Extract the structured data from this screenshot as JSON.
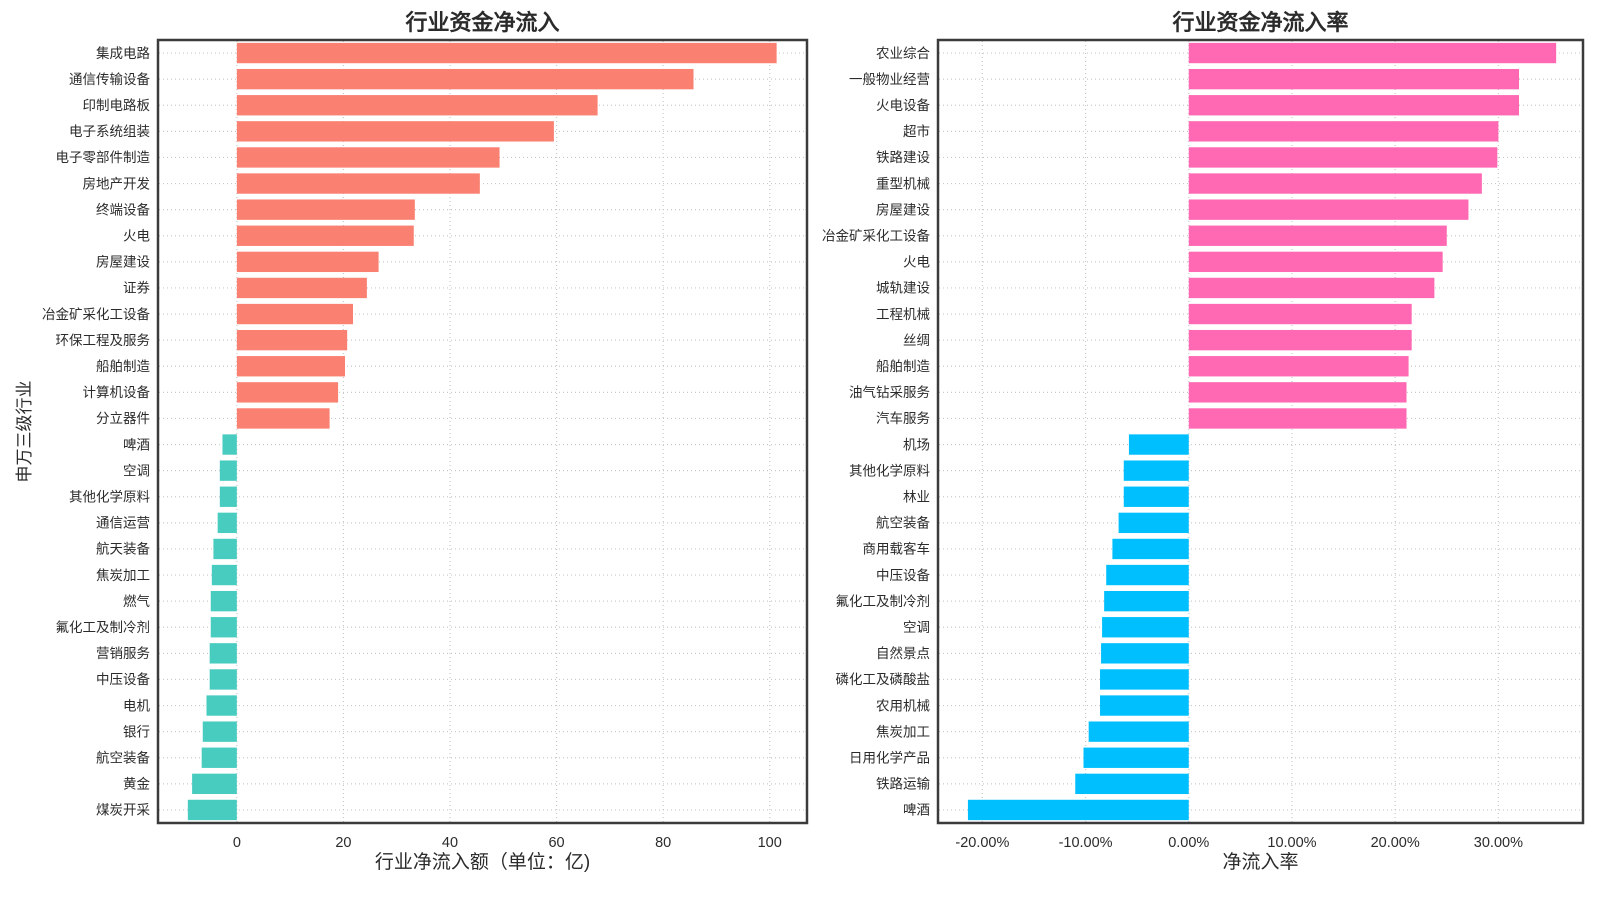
{
  "page": {
    "background": "#ffffff"
  },
  "chart_data": [
    {
      "type": "bar",
      "orientation": "horizontal",
      "title": "行业资金净流入",
      "xlabel": "行业净流入额（单位：亿)",
      "ylabel": "申万三级行业",
      "legend": "none",
      "grid": true,
      "xlim": [
        -14.8,
        107.0
      ],
      "xticks": [
        {
          "value": 0,
          "label": "0"
        },
        {
          "value": 20,
          "label": "20"
        },
        {
          "value": 40,
          "label": "40"
        },
        {
          "value": 60,
          "label": "60"
        },
        {
          "value": 80,
          "label": "80"
        },
        {
          "value": 100,
          "label": "100"
        }
      ],
      "colors": {
        "positive": "#fa8072",
        "negative": "#48ccc0"
      },
      "bars": [
        {
          "label": "集成电路",
          "value": 101.3
        },
        {
          "label": "通信传输设备",
          "value": 85.7
        },
        {
          "label": "印制电路板",
          "value": 67.7
        },
        {
          "label": "电子系统组装",
          "value": 59.5
        },
        {
          "label": "电子零部件制造",
          "value": 49.3
        },
        {
          "label": "房地产开发",
          "value": 45.6
        },
        {
          "label": "终端设备",
          "value": 33.4
        },
        {
          "label": "火电",
          "value": 33.2
        },
        {
          "label": "房屋建设",
          "value": 26.6
        },
        {
          "label": "证券",
          "value": 24.4
        },
        {
          "label": "冶金矿采化工设备",
          "value": 21.8
        },
        {
          "label": "环保工程及服务",
          "value": 20.7
        },
        {
          "label": "船舶制造",
          "value": 20.3
        },
        {
          "label": "计算机设备",
          "value": 19.0
        },
        {
          "label": "分立器件",
          "value": 17.4
        },
        {
          "label": "啤酒",
          "value": -2.7
        },
        {
          "label": "空调",
          "value": -3.2
        },
        {
          "label": "其他化学原料",
          "value": -3.2
        },
        {
          "label": "通信运营",
          "value": -3.6
        },
        {
          "label": "航天装备",
          "value": -4.4
        },
        {
          "label": "焦炭加工",
          "value": -4.7
        },
        {
          "label": "燃气",
          "value": -4.9
        },
        {
          "label": "氟化工及制冷剂",
          "value": -4.9
        },
        {
          "label": "营销服务",
          "value": -5.1
        },
        {
          "label": "中压设备",
          "value": -5.1
        },
        {
          "label": "电机",
          "value": -5.7
        },
        {
          "label": "银行",
          "value": -6.4
        },
        {
          "label": "航空装备",
          "value": -6.6
        },
        {
          "label": "黄金",
          "value": -8.4
        },
        {
          "label": "煤炭开采",
          "value": -9.2
        }
      ]
    },
    {
      "type": "bar",
      "orientation": "horizontal",
      "title": "行业资金净流入率",
      "xlabel": "净流入率",
      "ylabel": "",
      "legend": "none",
      "grid": true,
      "xlim": [
        -24.3,
        38.2
      ],
      "xticks": [
        {
          "value": -20,
          "label": "-20.00%"
        },
        {
          "value": -10,
          "label": "-10.00%"
        },
        {
          "value": 0,
          "label": "0.00%"
        },
        {
          "value": 10,
          "label": "10.00%"
        },
        {
          "value": 20,
          "label": "20.00%"
        },
        {
          "value": 30,
          "label": "30.00%"
        }
      ],
      "colors": {
        "positive": "#ff69b4",
        "negative": "#00bfff"
      },
      "bars": [
        {
          "label": "农业综合",
          "value": 35.6
        },
        {
          "label": "一般物业经营",
          "value": 32.0
        },
        {
          "label": "火电设备",
          "value": 32.0
        },
        {
          "label": "超市",
          "value": 30.0
        },
        {
          "label": "铁路建设",
          "value": 29.9
        },
        {
          "label": "重型机械",
          "value": 28.4
        },
        {
          "label": "房屋建设",
          "value": 27.1
        },
        {
          "label": "冶金矿采化工设备",
          "value": 25.0
        },
        {
          "label": "火电",
          "value": 24.6
        },
        {
          "label": "城轨建设",
          "value": 23.8
        },
        {
          "label": "工程机械",
          "value": 21.6
        },
        {
          "label": "丝绸",
          "value": 21.6
        },
        {
          "label": "船舶制造",
          "value": 21.3
        },
        {
          "label": "油气钻采服务",
          "value": 21.1
        },
        {
          "label": "汽车服务",
          "value": 21.1
        },
        {
          "label": "机场",
          "value": -5.8
        },
        {
          "label": "其他化学原料",
          "value": -6.3
        },
        {
          "label": "林业",
          "value": -6.3
        },
        {
          "label": "航空装备",
          "value": -6.8
        },
        {
          "label": "商用载客车",
          "value": -7.4
        },
        {
          "label": "中压设备",
          "value": -8.0
        },
        {
          "label": "氟化工及制冷剂",
          "value": -8.2
        },
        {
          "label": "空调",
          "value": -8.4
        },
        {
          "label": "自然景点",
          "value": -8.5
        },
        {
          "label": "磷化工及磷酸盐",
          "value": -8.6
        },
        {
          "label": "农用机械",
          "value": -8.6
        },
        {
          "label": "焦炭加工",
          "value": -9.7
        },
        {
          "label": "日用化学产品",
          "value": -10.2
        },
        {
          "label": "铁路运输",
          "value": -11.0
        },
        {
          "label": "啤酒",
          "value": -21.4
        }
      ]
    }
  ],
  "style_tokens": {
    "grid_color": "#c9c9c9",
    "spine_color": "#3b3b3b",
    "text_color": "#2b2b2b",
    "title_color": "#1f1f1f"
  }
}
